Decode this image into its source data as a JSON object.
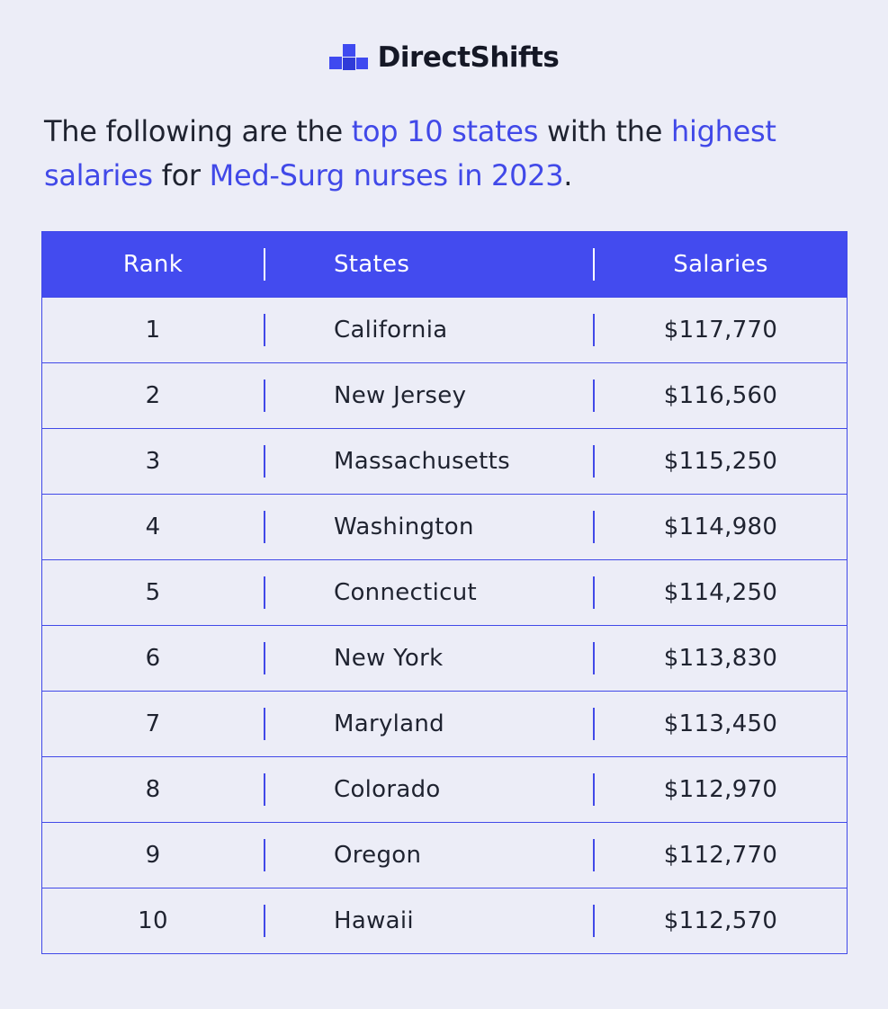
{
  "brand": {
    "name": "DirectShifts",
    "colors": {
      "accent": "#4149E8",
      "header_bg": "#434BEF",
      "page_bg": "#ECEDF7"
    }
  },
  "intro": {
    "t1": "The following are the ",
    "h1": "top 10 states",
    "t2": " with the ",
    "h2": "highest salaries",
    "t3": " for ",
    "h3": "Med-Surg nurses in 2023",
    "t4": "."
  },
  "table": {
    "headers": {
      "rank": "Rank",
      "state": "States",
      "salary": "Salaries"
    },
    "rows": [
      {
        "rank": "1",
        "state": "California",
        "salary": "$117,770"
      },
      {
        "rank": "2",
        "state": "New Jersey",
        "salary": "$116,560"
      },
      {
        "rank": "3",
        "state": "Massachusetts",
        "salary": "$115,250"
      },
      {
        "rank": "4",
        "state": "Washington",
        "salary": "$114,980"
      },
      {
        "rank": "5",
        "state": "Connecticut",
        "salary": "$114,250"
      },
      {
        "rank": "6",
        "state": "New York",
        "salary": "$113,830"
      },
      {
        "rank": "7",
        "state": "Maryland",
        "salary": "$113,450"
      },
      {
        "rank": "8",
        "state": "Colorado",
        "salary": "$112,970"
      },
      {
        "rank": "9",
        "state": "Oregon",
        "salary": "$112,770"
      },
      {
        "rank": "10",
        "state": "Hawaii",
        "salary": "$112,570"
      }
    ]
  }
}
